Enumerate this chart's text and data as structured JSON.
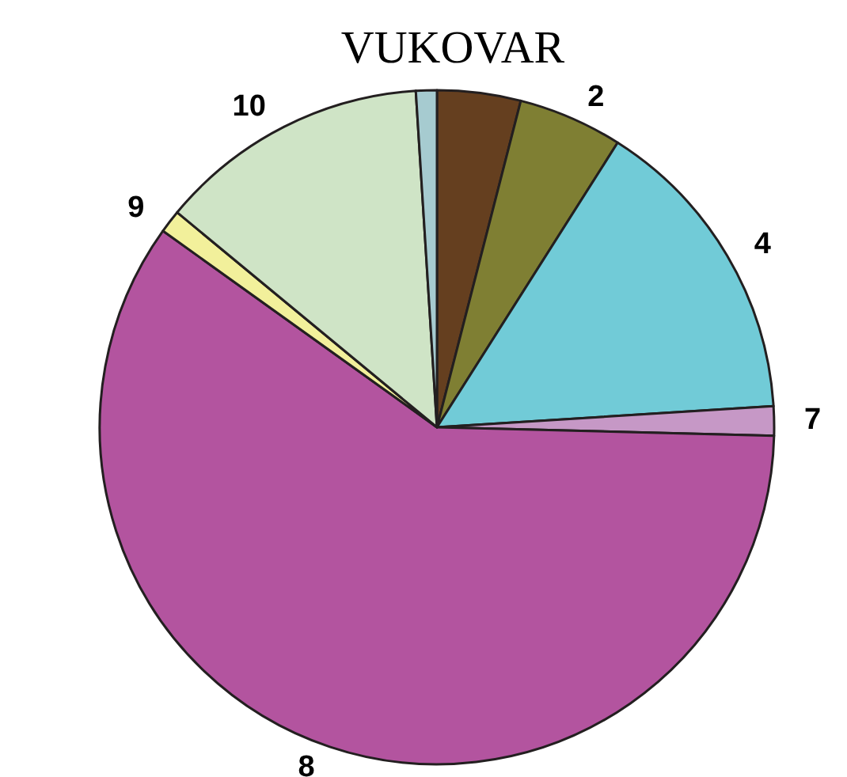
{
  "chart_data": {
    "type": "pie",
    "title": "VUKOVAR",
    "categories": [
      null,
      "2",
      "4",
      "7",
      "8",
      "9",
      "10",
      null
    ],
    "values": [
      4,
      5,
      15,
      1.4,
      59.5,
      1.1,
      13,
      1
    ],
    "colors": [
      "#653f1f",
      "#7f7f33",
      "#71cbd7",
      "#c698c6",
      "#b3549f",
      "#f2f09b",
      "#cfe4c6",
      "#a6cbd0"
    ],
    "legend": false
  }
}
